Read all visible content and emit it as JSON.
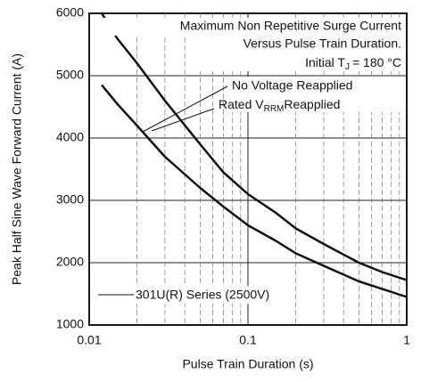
{
  "chart_data": {
    "type": "line",
    "x_label": "Pulse Train Duration (s)",
    "y_label": "Peak Half Sine Wave Forward Current (A)",
    "xscale": "log",
    "xlim": [
      0.01,
      1
    ],
    "xticks": [
      0.01,
      0.1,
      1
    ],
    "x_minor_grid": [
      0.02,
      0.03,
      0.04,
      0.05,
      0.06,
      0.07,
      0.08,
      0.09,
      0.2,
      0.3,
      0.4,
      0.5,
      0.6,
      0.7,
      0.8,
      0.9
    ],
    "ylim": [
      1000,
      6000
    ],
    "yticks": [
      1000,
      2000,
      3000,
      4000,
      5000,
      6000
    ],
    "grid": true,
    "x": [
      0.012,
      0.015,
      0.02,
      0.03,
      0.05,
      0.07,
      0.1,
      0.15,
      0.2,
      0.3,
      0.5,
      0.7,
      1
    ],
    "series": [
      {
        "color": "#111",
        "values": [
          6000,
          5600,
          5200,
          4600,
          3900,
          3450,
          3100,
          2800,
          2550,
          2300,
          2000,
          1850,
          1720
        ]
      },
      {
        "color": "#111",
        "values": [
          4850,
          4550,
          4200,
          3700,
          3200,
          2900,
          2600,
          2350,
          2150,
          1950,
          1700,
          1580,
          1450
        ]
      }
    ],
    "annotations": {
      "title1": "Maximum Non Repetitive Surge Current",
      "title2": "Versus Pulse Train Duration.",
      "tj_pre": "Initial T",
      "tj_sub": "J",
      "tj_post": "= 180 °C",
      "label1": "No Voltage Reapplied",
      "label2_pre": "Rated V",
      "label2_sub": "RRM",
      "label2_post": "Reapplied",
      "series_note": "301U(R) Series (2500V)"
    }
  }
}
